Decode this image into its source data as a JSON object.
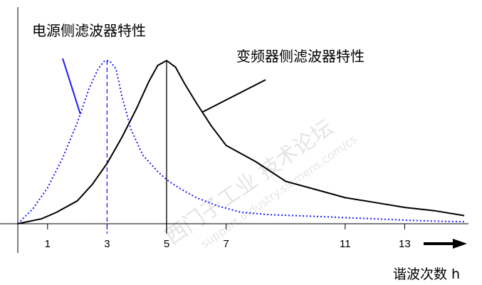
{
  "chart_data": {
    "type": "line",
    "xlabel": "谐波次数 h",
    "ylabel": "",
    "xlim": [
      0,
      15
    ],
    "ylim": [
      0,
      1
    ],
    "x_ticks": [
      1,
      3,
      5,
      7,
      11,
      13
    ],
    "grid": false,
    "legend": "none",
    "series": [
      {
        "name": "电源侧滤波器特性",
        "color": "#1a1aff",
        "style": "dotted",
        "peak_x": 3,
        "points": [
          [
            0,
            0.0
          ],
          [
            0.5,
            0.09
          ],
          [
            1.0,
            0.22
          ],
          [
            1.5,
            0.4
          ],
          [
            2.0,
            0.62
          ],
          [
            2.4,
            0.83
          ],
          [
            2.7,
            0.95
          ],
          [
            2.9,
            0.995
          ],
          [
            3.0,
            1.0
          ],
          [
            3.1,
            0.995
          ],
          [
            3.3,
            0.95
          ],
          [
            3.5,
            0.78
          ],
          [
            3.8,
            0.58
          ],
          [
            4.2,
            0.42
          ],
          [
            4.7,
            0.32
          ],
          [
            5.0,
            0.27
          ],
          [
            5.5,
            0.21
          ],
          [
            6.0,
            0.16
          ],
          [
            6.7,
            0.11
          ],
          [
            7.5,
            0.07
          ],
          [
            8.5,
            0.055
          ],
          [
            10,
            0.045
          ],
          [
            11,
            0.037
          ],
          [
            12,
            0.03
          ],
          [
            13,
            0.022
          ],
          [
            14,
            0.016
          ],
          [
            15,
            0.012
          ]
        ]
      },
      {
        "name": "变频器侧滤波器特性",
        "color": "#000000",
        "style": "solid",
        "peak_x": 5,
        "points": [
          [
            0,
            0.0
          ],
          [
            0.8,
            0.03
          ],
          [
            1.3,
            0.07
          ],
          [
            2.0,
            0.14
          ],
          [
            2.5,
            0.24
          ],
          [
            3.0,
            0.37
          ],
          [
            3.5,
            0.53
          ],
          [
            4.0,
            0.71
          ],
          [
            4.4,
            0.87
          ],
          [
            4.7,
            0.97
          ],
          [
            5.0,
            1.0
          ],
          [
            5.3,
            0.96
          ],
          [
            5.6,
            0.86
          ],
          [
            6.0,
            0.74
          ],
          [
            6.5,
            0.6
          ],
          [
            7.0,
            0.48
          ],
          [
            8.0,
            0.38
          ],
          [
            9.0,
            0.26
          ],
          [
            10.0,
            0.21
          ],
          [
            11.0,
            0.16
          ],
          [
            12.0,
            0.13
          ],
          [
            13.0,
            0.1
          ],
          [
            14.0,
            0.08
          ],
          [
            15.0,
            0.05
          ]
        ]
      }
    ],
    "annotations": [
      {
        "text": "电源侧滤波器特性",
        "target_series": 0,
        "points_to_x": 2.1
      },
      {
        "text": "变频器侧滤波器特性",
        "target_series": 1,
        "points_to_x": 6.2
      }
    ]
  }
}
